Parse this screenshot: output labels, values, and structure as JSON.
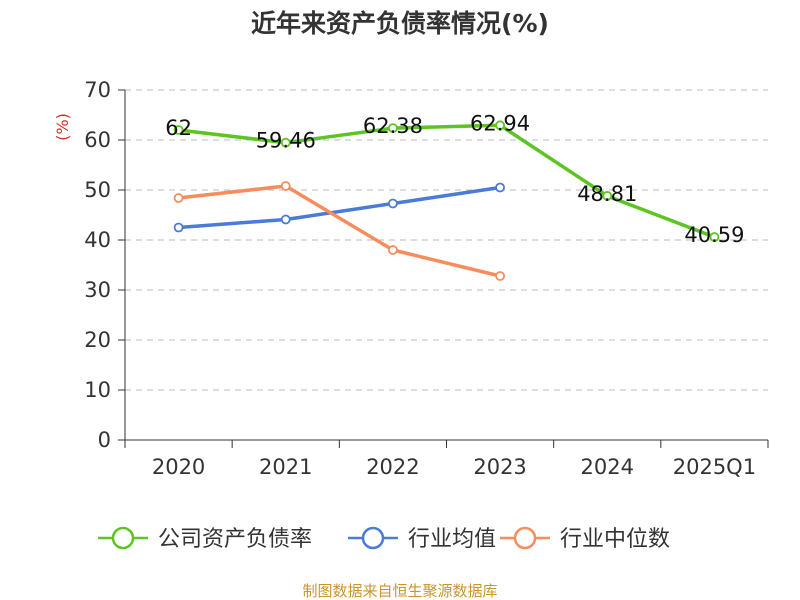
{
  "chart_data": {
    "type": "line",
    "title": "近年来资产负债率情况(%)",
    "ylabel": "(%)",
    "ylim": [
      0,
      70
    ],
    "yticks": [
      0,
      10,
      20,
      30,
      40,
      50,
      60,
      70
    ],
    "grid": true,
    "legend_position": "bottom",
    "categories": [
      "2020",
      "2021",
      "2022",
      "2023",
      "2024",
      "2025Q1"
    ],
    "series": [
      {
        "name": "公司资产负债率",
        "color": "#5cc522",
        "values": [
          62,
          59.46,
          62.38,
          62.94,
          48.81,
          40.59
        ],
        "data_labels": [
          "62",
          "59.46",
          "62.38",
          "62.94",
          "48.81",
          "40.59"
        ]
      },
      {
        "name": "行业均值",
        "color": "#4a7bd6",
        "values": [
          42.5,
          44.1,
          47.3,
          50.5,
          null,
          null
        ]
      },
      {
        "name": "行业中位数",
        "color": "#f58d5c",
        "values": [
          48.4,
          50.8,
          38.0,
          32.8,
          null,
          null
        ]
      }
    ],
    "source": "制图数据来自恒生聚源数据库"
  },
  "colors": {
    "unit_label": "#d0312d",
    "source_text": "#c8962a"
  }
}
